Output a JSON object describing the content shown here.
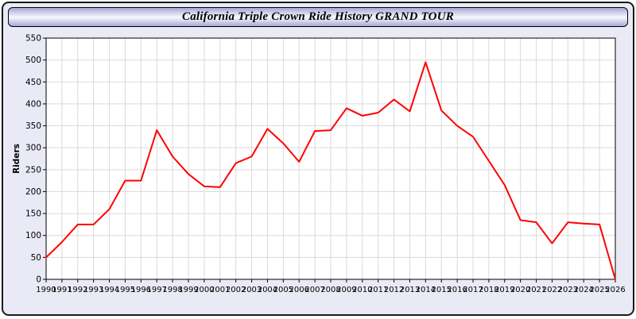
{
  "header": {
    "title": "California Triple Crown Ride History GRAND TOUR"
  },
  "chart_data": {
    "type": "line",
    "title": "California Triple Crown Ride History GRAND TOUR",
    "xlabel": "",
    "ylabel": "Riders",
    "x": [
      1990,
      1991,
      1992,
      1993,
      1994,
      1995,
      1996,
      1997,
      1998,
      1999,
      2000,
      2001,
      2002,
      2003,
      2004,
      2005,
      2006,
      2007,
      2008,
      2009,
      2010,
      2011,
      2012,
      2013,
      2014,
      2015,
      2016,
      2017,
      2018,
      2019,
      2020,
      2021,
      2022,
      2023,
      2024,
      2025,
      2026
    ],
    "values": [
      50,
      85,
      125,
      125,
      160,
      225,
      225,
      340,
      280,
      240,
      212,
      210,
      265,
      280,
      343,
      310,
      268,
      338,
      340,
      390,
      373,
      380,
      410,
      383,
      495,
      385,
      350,
      325,
      270,
      215,
      135,
      130,
      82,
      130,
      127,
      125,
      0
    ],
    "ylim": [
      0,
      550
    ],
    "ytick_step": 50,
    "line_color": "#ff0000",
    "grid_color": "#d9d9d9",
    "axis_color": "#000000",
    "plot_bg": "#ffffff",
    "grid": true,
    "legend": "none"
  }
}
